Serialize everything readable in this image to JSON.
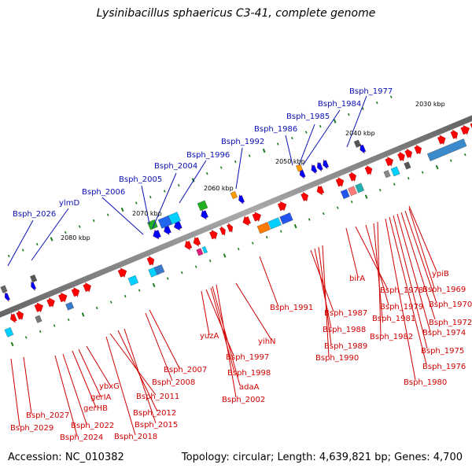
{
  "header": {
    "title": "Lysinibacillus sphaericus C3-41, complete genome"
  },
  "footer": {
    "accession": "Accession: NC_010382",
    "topology": "Topology: circular; Length: 4,639,821 bp; Genes: 4,700"
  },
  "scale_labels": [
    "2030 kbp",
    "2040 kbp",
    "2050 kbp",
    "2060 kbp",
    "2070 kbp",
    "2080 kbp"
  ],
  "top_labels": [
    "Bsph_1977",
    "Bsph_1984",
    "Bsph_1985",
    "Bsph_1986",
    "Bsph_1992",
    "Bsph_1996",
    "Bsph_2004",
    "Bsph_2005",
    "Bsph_2006",
    "ylmD",
    "Bsph_2026"
  ],
  "bottom_labels": [
    "ypiB",
    "Bsph_1969",
    "Bsph_1970",
    "Bsph_1972",
    "Bsph_1974",
    "Bsph_1975",
    "Bsph_1976",
    "Bsph_1980",
    "birA",
    "Bsph_1978",
    "Bsph_1979",
    "Bsph_1981",
    "Bsph_1982",
    "Bsph_1987",
    "Bsph_1988",
    "Bsph_1989",
    "Bsph_1990",
    "Bsph_1991",
    "yihN",
    "yuzA",
    "Bsph_1997",
    "Bsph_1998",
    "adaA",
    "Bsph_2002",
    "Bsph_2007",
    "Bsph_2008",
    "Bsph_2011",
    "Bsph_2012",
    "Bsph_2015",
    "Bsph_2018",
    "ybxG",
    "gerIA",
    "gerHB",
    "Bsph_2022",
    "Bsph_2024",
    "Bsph_2027",
    "Bsph_2029"
  ],
  "colors": {
    "forward_cds": "#ff0000",
    "reverse_cds": "#0000ff",
    "label_top": "#0a10b4",
    "label_bottom": "#d00000",
    "backbone": "#8a8a8a",
    "tick": "#1c7a1c"
  }
}
